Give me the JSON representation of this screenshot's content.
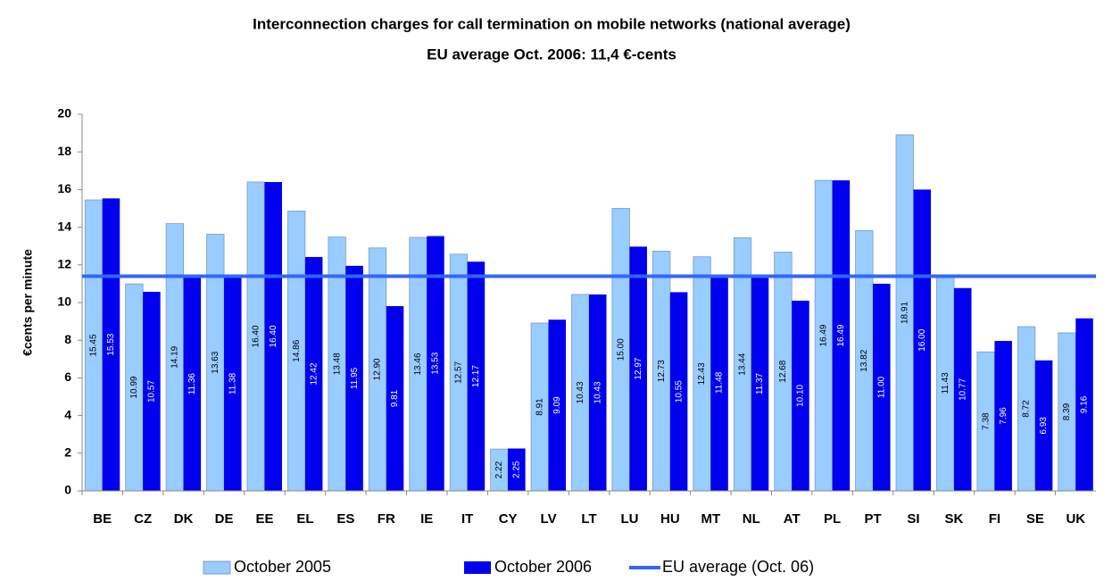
{
  "chart_data": {
    "type": "bar",
    "title": "Interconnection charges for call termination on mobile networks (national average)",
    "subtitle": "EU average Oct. 2006: 11,4 €-cents",
    "y_label": "€cents per minute",
    "categories": [
      "BE",
      "CZ",
      "DK",
      "DE",
      "EE",
      "EL",
      "ES",
      "FR",
      "IE",
      "IT",
      "CY",
      "LV",
      "LT",
      "LU",
      "HU",
      "MT",
      "NL",
      "AT",
      "PL",
      "PT",
      "SI",
      "SK",
      "FI",
      "SE",
      "UK"
    ],
    "series": [
      {
        "name": "October 2005",
        "color": "#99ccff",
        "values": [
          15.45,
          10.99,
          14.19,
          13.63,
          16.4,
          14.86,
          13.48,
          12.9,
          13.46,
          12.57,
          2.22,
          8.91,
          10.43,
          15,
          12.73,
          12.43,
          13.44,
          12.68,
          16.49,
          13.82,
          18.91,
          11.43,
          7.38,
          8.72,
          8.39
        ],
        "value_labels": [
          "15.45",
          "10.99",
          "14.19",
          "13.63",
          "16.40",
          "14.86",
          "13.48",
          "12.90",
          "13.46",
          "12.57",
          "2.22",
          "8.91",
          "10.43",
          "15.00",
          "12.73",
          "12.43",
          "13.44",
          "12.68",
          "16.49",
          "13.82",
          "18.91",
          "11.43",
          "7.38",
          "8.72",
          "8.39"
        ]
      },
      {
        "name": "October 2006",
        "color": "#0000ee",
        "values": [
          15.53,
          10.57,
          11.36,
          11.38,
          16.4,
          12.42,
          11.95,
          9.81,
          13.53,
          12.17,
          2.25,
          9.09,
          10.43,
          12.97,
          10.55,
          11.48,
          11.37,
          10.1,
          16.49,
          11,
          16,
          10.77,
          7.96,
          6.93,
          9.16
        ],
        "value_labels": [
          "15.53",
          "10.57",
          "11.36",
          "11.38",
          "16.40",
          "12.42",
          "11.95",
          "9.81",
          "13.53",
          "12.17",
          "2.25",
          "9.09",
          "10.43",
          "12.97",
          "10.55",
          "11.48",
          "11.37",
          "10.10",
          "16.49",
          "11.00",
          "16.00",
          "10.77",
          "7.96",
          "6.93",
          "9.16"
        ]
      }
    ],
    "reference_line": {
      "name": "EU average (Oct. 06)",
      "color": "#3366ff",
      "value": 11.4
    },
    "ylim": [
      0,
      20
    ],
    "yticks": [
      0,
      2,
      4,
      6,
      8,
      10,
      12,
      14,
      16,
      18,
      20
    ],
    "legend": "bottom"
  }
}
